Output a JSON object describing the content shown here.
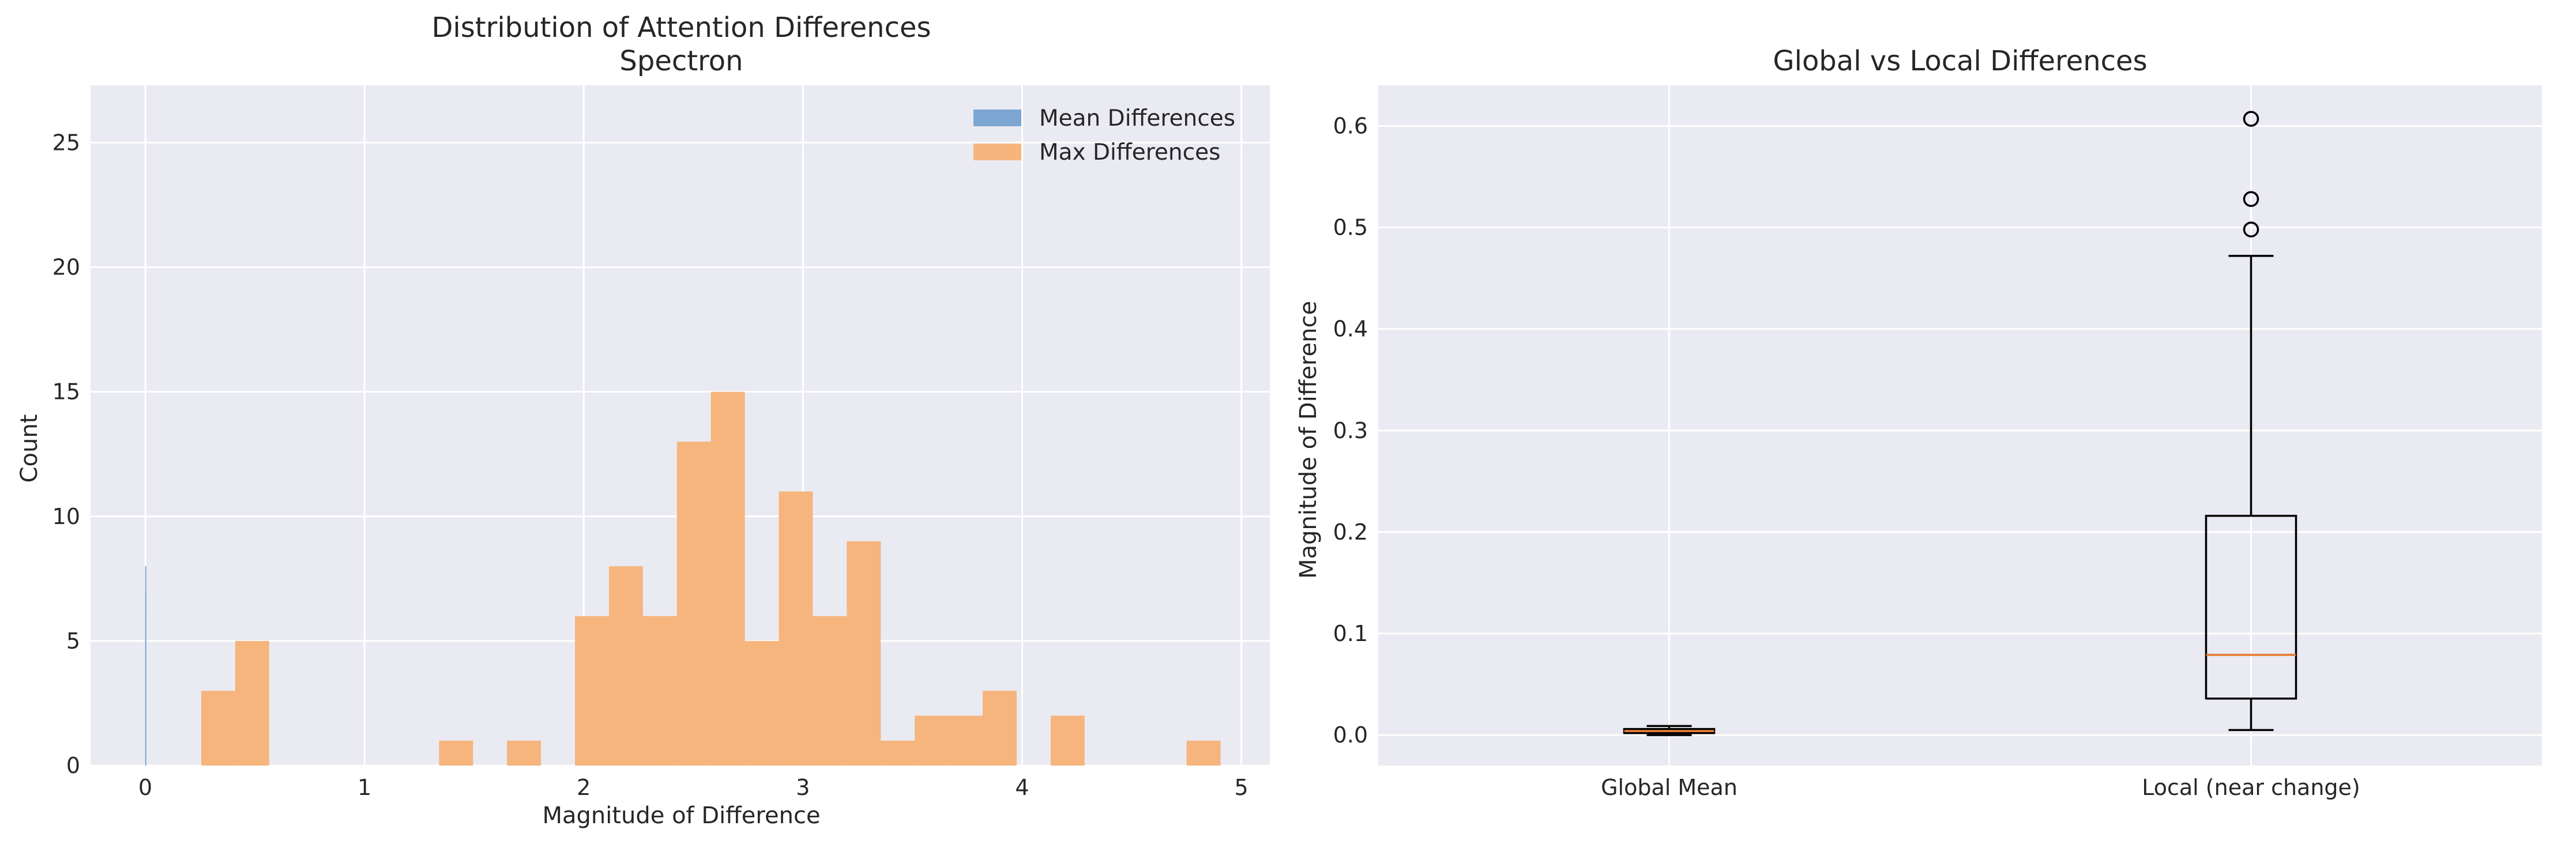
{
  "chart_data": [
    {
      "type": "histogram",
      "title": "Distribution of Attention Differences\nSpectron",
      "xlabel": "Magnitude of Difference",
      "ylabel": "Count",
      "xlim": [
        -0.25,
        5.13
      ],
      "ylim": [
        0,
        27.3
      ],
      "xticks": [
        0,
        1,
        2,
        3,
        4,
        5
      ],
      "yticks": [
        0,
        5,
        10,
        15,
        20,
        25
      ],
      "grid": true,
      "legend_position": "top-right",
      "series": [
        {
          "name": "Mean Differences",
          "color": "#7ea6d3",
          "bin_width": 0.0003,
          "bins": [
            {
              "x0": -0.0013,
              "count": 8
            },
            {
              "x0": -0.001,
              "count": 7
            },
            {
              "x0": -0.0007,
              "count": 6
            },
            {
              "x0": -0.0004,
              "count": 8
            },
            {
              "x0": -0.0001,
              "count": 7
            },
            {
              "x0": 0.0002,
              "count": 6
            },
            {
              "x0": 0.0005,
              "count": 8
            },
            {
              "x0": 0.0008,
              "count": 7
            }
          ]
        },
        {
          "name": "Max Differences",
          "color": "#f5b57d",
          "bin_width": 0.155,
          "bins": [
            {
              "x0": 0.255,
              "count": 3
            },
            {
              "x0": 0.41,
              "count": 5
            },
            {
              "x0": 0.565,
              "count": 0
            },
            {
              "x0": 0.72,
              "count": 0
            },
            {
              "x0": 0.875,
              "count": 0
            },
            {
              "x0": 1.03,
              "count": 0
            },
            {
              "x0": 1.185,
              "count": 0
            },
            {
              "x0": 1.34,
              "count": 1
            },
            {
              "x0": 1.495,
              "count": 0
            },
            {
              "x0": 1.65,
              "count": 1
            },
            {
              "x0": 1.805,
              "count": 0
            },
            {
              "x0": 1.96,
              "count": 6
            },
            {
              "x0": 2.115,
              "count": 8
            },
            {
              "x0": 2.27,
              "count": 6
            },
            {
              "x0": 2.425,
              "count": 13
            },
            {
              "x0": 2.58,
              "count": 15
            },
            {
              "x0": 2.735,
              "count": 5
            },
            {
              "x0": 2.89,
              "count": 11
            },
            {
              "x0": 3.045,
              "count": 6
            },
            {
              "x0": 3.2,
              "count": 9
            },
            {
              "x0": 3.355,
              "count": 1
            },
            {
              "x0": 3.51,
              "count": 2
            },
            {
              "x0": 3.665,
              "count": 2
            },
            {
              "x0": 3.82,
              "count": 3
            },
            {
              "x0": 3.975,
              "count": 0
            },
            {
              "x0": 4.13,
              "count": 2
            },
            {
              "x0": 4.285,
              "count": 0
            },
            {
              "x0": 4.44,
              "count": 0
            },
            {
              "x0": 4.595,
              "count": 0
            },
            {
              "x0": 4.75,
              "count": 1
            }
          ]
        }
      ]
    },
    {
      "type": "boxplot",
      "title": "Global vs Local Differences",
      "xlabel": "",
      "ylabel": "Magnitude of Difference",
      "ylim": [
        -0.03,
        0.64
      ],
      "yticks": [
        0.0,
        0.1,
        0.2,
        0.3,
        0.4,
        0.5,
        0.6
      ],
      "ytick_labels": [
        "0.0",
        "0.1",
        "0.2",
        "0.3",
        "0.4",
        "0.5",
        "0.6"
      ],
      "grid": true,
      "box_color": "#000000",
      "median_color": "#e8782a",
      "boxes": [
        {
          "label": "Global Mean",
          "whisker_low": 0.0,
          "q1": 0.002,
          "median": 0.004,
          "q3": 0.006,
          "whisker_high": 0.009,
          "outliers": []
        },
        {
          "label": "Local (near change)",
          "whisker_low": 0.005,
          "q1": 0.036,
          "median": 0.079,
          "q3": 0.216,
          "whisker_high": 0.472,
          "outliers": [
            0.498,
            0.528,
            0.607
          ]
        }
      ]
    }
  ]
}
